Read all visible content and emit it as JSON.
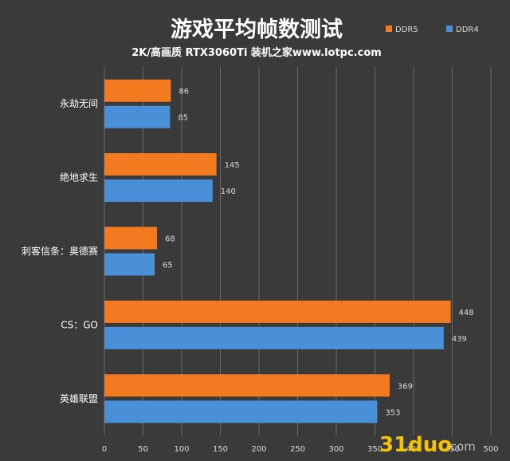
{
  "chart_data": {
    "type": "bar",
    "orientation": "horizontal",
    "title": "游戏平均帧数测试",
    "subtitle": "2K/高画质 RTX3060Ti 装机之家www.lotpc.com",
    "categories": [
      "永劫无间",
      "绝地求生",
      "刺客信条：奥德赛",
      "CS：GO",
      "英雄联盟"
    ],
    "series": [
      {
        "name": "DDR5",
        "color": "#f47a20",
        "values": [
          86,
          145,
          68,
          448,
          369
        ]
      },
      {
        "name": "DDR4",
        "color": "#4a90d9",
        "values": [
          85,
          140,
          65,
          439,
          353
        ]
      }
    ],
    "xlim": [
      0,
      500
    ],
    "x_ticks": [
      "0",
      "50",
      "100",
      "150",
      "200",
      "250",
      "300",
      "350",
      "400",
      "450",
      "500"
    ],
    "grid": true,
    "legend_position": "top-right"
  },
  "watermark": {
    "text": "31duo",
    "suffix": ".com"
  }
}
